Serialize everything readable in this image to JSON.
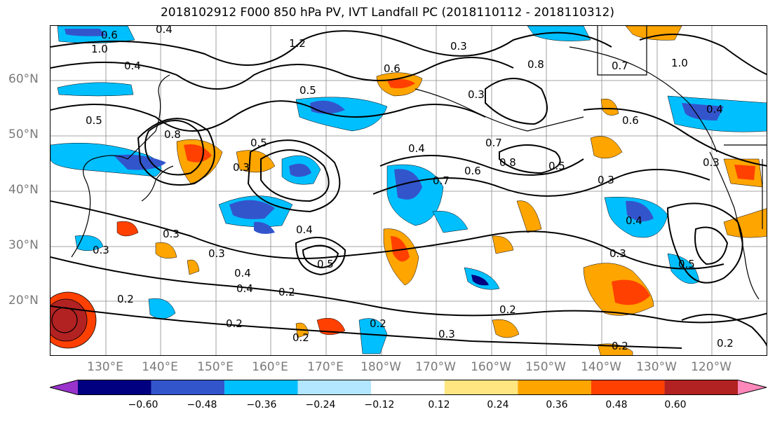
{
  "title": "2018102912 F000 850 hPa PV, IVT Landfall PC (2018110112 - 2018110312)",
  "lat_labels": [
    "60°N",
    "50°N",
    "40°N",
    "30°N",
    "20°N"
  ],
  "lon_labels": [
    "130°E",
    "140°E",
    "150°E",
    "160°E",
    "170°E",
    "180°W",
    "170°W",
    "160°W",
    "150°W",
    "140°W",
    "130°W",
    "120°W"
  ],
  "colorbar": {
    "tick_labels": [
      "−0.60",
      "−0.48",
      "−0.36",
      "−0.24",
      "−0.12",
      "0.12",
      "0.24",
      "0.36",
      "0.48",
      "0.60"
    ],
    "colors": [
      "#9933cc",
      "#000080",
      "#3355cc",
      "#00bfff",
      "#b3e6ff",
      "#ffffff",
      "#ffe680",
      "#ffa500",
      "#ff4000",
      "#b22222",
      "#ff88bb"
    ]
  },
  "contour_labels": [
    "0.6",
    "0.4",
    "1.0",
    "1.2",
    "0.4",
    "0.3",
    "0.6",
    "0.3",
    "0.8",
    "0.7",
    "1.0",
    "0.4",
    "0.5",
    "0.5",
    "0.6",
    "0.8",
    "0.3",
    "0.5",
    "0.4",
    "0.7",
    "0.6",
    "0.7",
    "0.8",
    "0.5",
    "0.3",
    "0.4",
    "0.3",
    "0.4",
    "0.3",
    "0.2",
    "0.3",
    "0.4",
    "0.5",
    "0.3",
    "0.2",
    "0.4",
    "0.2",
    "0.2",
    "0.2",
    "0.3",
    "0.2",
    "0.2",
    "0.2",
    "0.5",
    "0.3"
  ],
  "colors": {
    "land_line": "#000000",
    "grid": "#888888",
    "axis_text": "#7a7a7a"
  }
}
